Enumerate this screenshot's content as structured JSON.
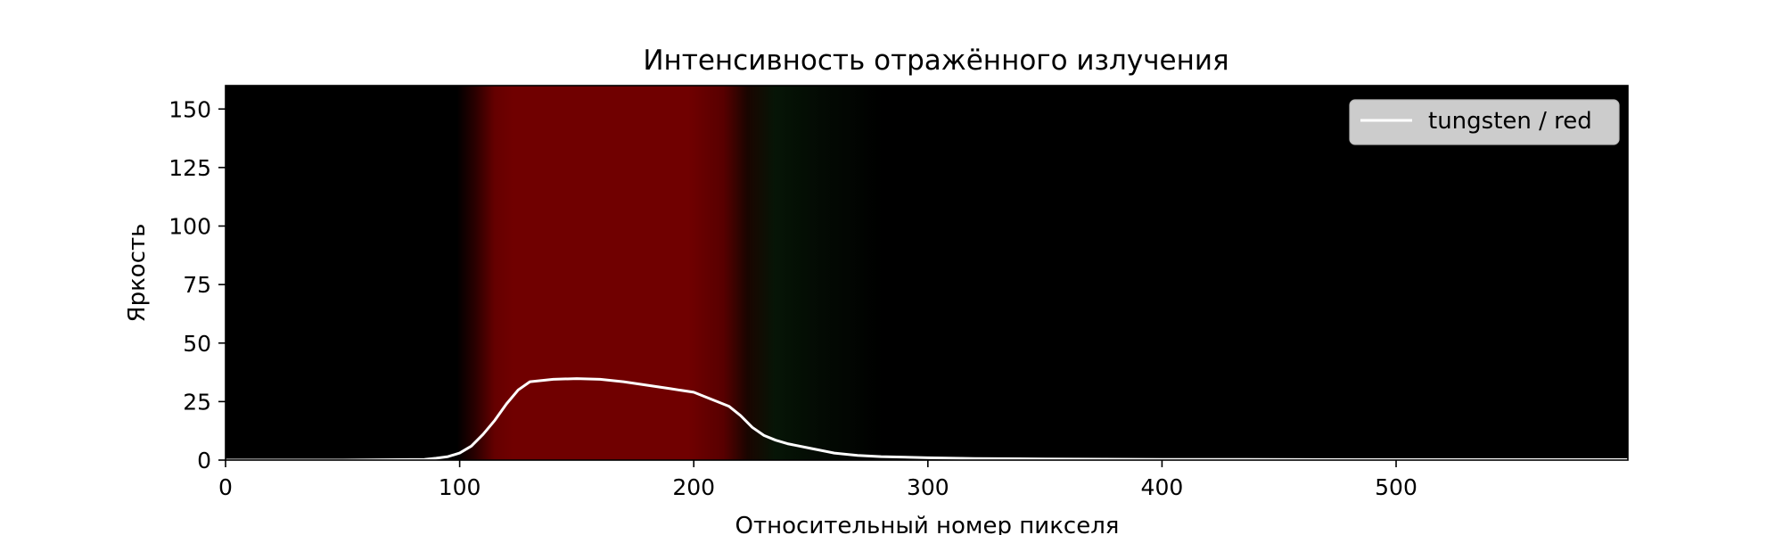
{
  "chart_data": {
    "type": "line",
    "title": "Интенсивность отражённого излучения",
    "xlabel": "Относительный номер пикселя",
    "ylabel": "Яркость",
    "xlim": [
      0,
      599
    ],
    "ylim": [
      0,
      160
    ],
    "x_ticks": [
      0,
      100,
      200,
      300,
      400,
      500
    ],
    "y_ticks": [
      0,
      25,
      50,
      75,
      100,
      125,
      150
    ],
    "grid": false,
    "legend_position": "top-right",
    "background": "spectrum image: dark, red band ~110–230 px, faint green ~230–260 px",
    "series": [
      {
        "name": "tungsten / red",
        "color": "#ffffff",
        "x": [
          0,
          50,
          85,
          90,
          95,
          100,
          105,
          110,
          115,
          120,
          125,
          130,
          140,
          150,
          160,
          170,
          180,
          190,
          200,
          205,
          210,
          215,
          220,
          225,
          230,
          235,
          240,
          250,
          260,
          270,
          280,
          300,
          320,
          350,
          400,
          500,
          599
        ],
        "values": [
          0,
          0,
          0.3,
          0.8,
          1.5,
          3,
          6,
          11,
          17,
          24,
          30,
          33.5,
          34.5,
          34.8,
          34.5,
          33.5,
          32,
          30.5,
          29,
          27,
          25,
          23,
          19,
          14,
          10.5,
          8.5,
          7,
          5,
          3,
          2,
          1.5,
          1,
          0.7,
          0.5,
          0.3,
          0.2,
          0.2
        ]
      }
    ]
  },
  "colors": {
    "line": "#ffffff",
    "band_red": "#700000",
    "band_green": "#061506",
    "background": "#000000"
  }
}
